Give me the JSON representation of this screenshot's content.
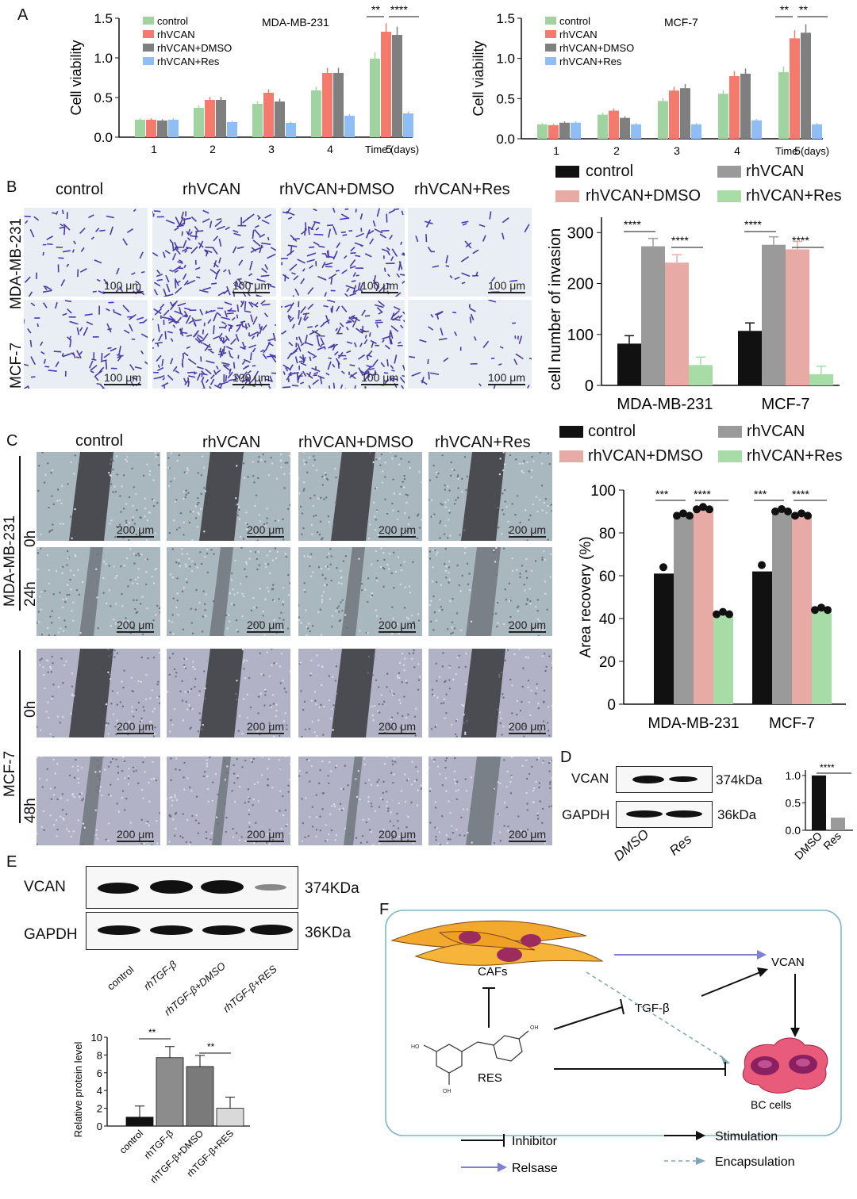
{
  "panels": {
    "A": "A",
    "B": "B",
    "C": "C",
    "D": "D",
    "E": "E",
    "F": "F"
  },
  "colors": {
    "control": "#9fd39f",
    "rhVCAN": "#f47a6e",
    "rhVCAN_DMSO": "#7f7f7f",
    "rhVCAN_Res": "#8fbef4",
    "black": "#111111",
    "grey": "#9a9a9a",
    "pink": "#e8aaa5",
    "green": "#a7dca7"
  },
  "chart_data": [
    {
      "id": "A-left",
      "type": "bar",
      "title": "MDA-MB-231",
      "xlabel": "Time (days)",
      "ylabel": "Cell viability",
      "ylim": [
        0,
        1.5
      ],
      "yticks": [
        "0.0",
        "0.5",
        "1.0",
        "1.5"
      ],
      "categories": [
        "1",
        "2",
        "3",
        "4",
        "5"
      ],
      "series": [
        {
          "name": "control",
          "values": [
            0.22,
            0.37,
            0.42,
            0.59,
            0.99
          ]
        },
        {
          "name": "rhVCAN",
          "values": [
            0.22,
            0.47,
            0.56,
            0.81,
            1.33
          ]
        },
        {
          "name": "rhVCAN+DMSO",
          "values": [
            0.21,
            0.47,
            0.45,
            0.81,
            1.29
          ]
        },
        {
          "name": "rhVCAN+Res",
          "values": [
            0.22,
            0.19,
            0.18,
            0.27,
            0.3
          ]
        }
      ],
      "significance": [
        "**",
        "****"
      ]
    },
    {
      "id": "A-right",
      "type": "bar",
      "title": "MCF-7",
      "xlabel": "Time (days)",
      "ylabel": "Cell viability",
      "ylim": [
        0,
        1.5
      ],
      "yticks": [
        "0.0",
        "0.5",
        "1.0",
        "1.5"
      ],
      "categories": [
        "1",
        "2",
        "3",
        "4",
        "5"
      ],
      "series": [
        {
          "name": "control",
          "values": [
            0.18,
            0.3,
            0.47,
            0.56,
            0.83
          ]
        },
        {
          "name": "rhVCAN",
          "values": [
            0.17,
            0.35,
            0.6,
            0.78,
            1.25
          ]
        },
        {
          "name": "rhVCAN+DMSO",
          "values": [
            0.2,
            0.26,
            0.63,
            0.81,
            1.32
          ]
        },
        {
          "name": "rhVCAN+Res",
          "values": [
            0.2,
            0.18,
            0.18,
            0.23,
            0.18
          ]
        }
      ],
      "significance": [
        "**",
        "**"
      ]
    },
    {
      "id": "B-chart",
      "type": "bar",
      "ylabel": "cell number of invasion",
      "ylim": [
        0,
        330
      ],
      "yticks": [
        "0",
        "100",
        "200",
        "300"
      ],
      "categories": [
        "MDA-MB-231",
        "MCF-7"
      ],
      "series": [
        {
          "name": "control",
          "values": [
            82,
            107
          ]
        },
        {
          "name": "rhVCAN",
          "values": [
            273,
            276
          ]
        },
        {
          "name": "rhVCAN+DMSO",
          "values": [
            241,
            267
          ]
        },
        {
          "name": "rhVCAN+Res",
          "values": [
            40,
            22
          ]
        }
      ],
      "significance": [
        "****",
        "****",
        "****",
        "****"
      ]
    },
    {
      "id": "C-chart",
      "type": "bar",
      "ylabel": "Area recovery (%)",
      "ylim": [
        0,
        100
      ],
      "yticks": [
        "0",
        "20",
        "40",
        "60",
        "80",
        "100"
      ],
      "categories": [
        "MDA-MB-231",
        "MCF-7"
      ],
      "series": [
        {
          "name": "control",
          "values": [
            61,
            62
          ]
        },
        {
          "name": "rhVCAN",
          "values": [
            88,
            90
          ]
        },
        {
          "name": "rhVCAN+DMSO",
          "values": [
            91,
            88
          ]
        },
        {
          "name": "rhVCAN+Res",
          "values": [
            42,
            44
          ]
        }
      ],
      "significance": [
        "***",
        "****",
        "***",
        "****"
      ]
    },
    {
      "id": "D-chart",
      "type": "bar",
      "ylim": [
        0,
        1.1
      ],
      "yticks": [
        "0.0",
        "0.5",
        "1.0"
      ],
      "categories": [
        "DMSO",
        "Res"
      ],
      "values": [
        1.0,
        0.23
      ],
      "significance": [
        "****"
      ]
    },
    {
      "id": "E-chart",
      "type": "bar",
      "ylabel": "Relative protein level",
      "ylim": [
        0,
        10
      ],
      "yticks": [
        "0",
        "2",
        "4",
        "6",
        "8",
        "10"
      ],
      "categories": [
        "control",
        "rhTGF-β",
        "rhTGF-β+DMSO",
        "rhTGF-β+RES"
      ],
      "values": [
        1.0,
        7.7,
        6.7,
        2.0
      ],
      "significance": [
        "**",
        "**"
      ]
    }
  ],
  "panelB": {
    "cols": [
      "control",
      "rhVCAN",
      "rhVCAN+DMSO",
      "rhVCAN+Res"
    ],
    "rows": [
      "MDA-MB-231",
      "MCF-7"
    ],
    "scale": "100 μm"
  },
  "panelC": {
    "cols": [
      "control",
      "rhVCAN",
      "rhVCAN+DMSO",
      "rhVCAN+Res"
    ],
    "rows": [
      "MDA-MB-231",
      "MCF-7"
    ],
    "times_top": [
      "0h",
      "24h"
    ],
    "times_bottom": [
      "0h",
      "48h"
    ],
    "scale": "200 μm"
  },
  "legends": {
    "B": [
      "control",
      "rhVCAN",
      "rhVCAN+DMSO",
      "rhVCAN+Res"
    ],
    "C": [
      "control",
      "rhVCAN",
      "rhVCAN+DMSO",
      "rhVCAN+Res"
    ]
  },
  "panelD": {
    "rows": [
      "VCAN",
      "GAPDH"
    ],
    "sizes": [
      "374kDa",
      "36kDa"
    ],
    "lanes": [
      "DMSO",
      "Res"
    ]
  },
  "panelE": {
    "rows": [
      "VCAN",
      "GAPDH"
    ],
    "sizes": [
      "374KDa",
      "36KDa"
    ],
    "lanes": [
      "control",
      "rhTGF-β",
      "rhTGF-β+DMSO",
      "rhTGF-β+RES"
    ]
  },
  "panelF": {
    "cafs": "CAFs",
    "vcan": "VCAN",
    "tgf": "TGF-β",
    "res": "RES",
    "bc": "BC cells",
    "legend": {
      "inhibitor": "Inhibitor",
      "release": "Relsase",
      "stimulation": "Stimulation",
      "encapsulation": "Encapsulation"
    }
  }
}
